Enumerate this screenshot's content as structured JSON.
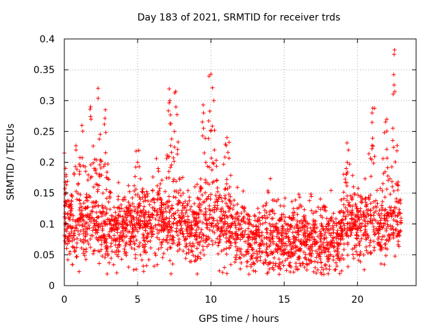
{
  "chart_data": {
    "type": "scatter",
    "title": "Day 183 of 2021, SRMTID for receiver trds",
    "xlabel": "GPS time / hours",
    "ylabel": "SRMTID / TECUs",
    "xlim": [
      0,
      24
    ],
    "ylim": [
      0,
      0.4
    ],
    "x_ticks": [
      0,
      5,
      10,
      15,
      20
    ],
    "x_tick_labels": [
      "0",
      "5",
      "10",
      "15",
      "20"
    ],
    "y_ticks": [
      0,
      0.05,
      0.1,
      0.15,
      0.2,
      0.25,
      0.3,
      0.35,
      0.4
    ],
    "y_tick_labels": [
      "0",
      "0.05",
      "0.1",
      "0.15",
      "0.2",
      "0.25",
      "0.3",
      "0.35",
      "0.4"
    ],
    "grid": true,
    "marker": "plus",
    "color": "#ff0000",
    "x_range_of_data": [
      0,
      23
    ],
    "series": [
      {
        "name": "trds",
        "note": "dense scatter of SRMTID vs GPS hour; baseline ~0.05-0.15 TECU with peaks",
        "peaks": [
          {
            "x": 0.0,
            "y": 0.215
          },
          {
            "x": 0.8,
            "y": 0.22
          },
          {
            "x": 1.2,
            "y": 0.26
          },
          {
            "x": 1.8,
            "y": 0.29
          },
          {
            "x": 2.3,
            "y": 0.32
          },
          {
            "x": 2.8,
            "y": 0.285
          },
          {
            "x": 5.0,
            "y": 0.2
          },
          {
            "x": 6.4,
            "y": 0.19
          },
          {
            "x": 7.2,
            "y": 0.3
          },
          {
            "x": 7.6,
            "y": 0.315
          },
          {
            "x": 9.5,
            "y": 0.28
          },
          {
            "x": 10.0,
            "y": 0.343
          },
          {
            "x": 10.2,
            "y": 0.3
          },
          {
            "x": 11.1,
            "y": 0.24
          },
          {
            "x": 19.3,
            "y": 0.2
          },
          {
            "x": 21.0,
            "y": 0.28
          },
          {
            "x": 22.0,
            "y": 0.27
          },
          {
            "x": 22.5,
            "y": 0.375
          }
        ]
      }
    ]
  }
}
